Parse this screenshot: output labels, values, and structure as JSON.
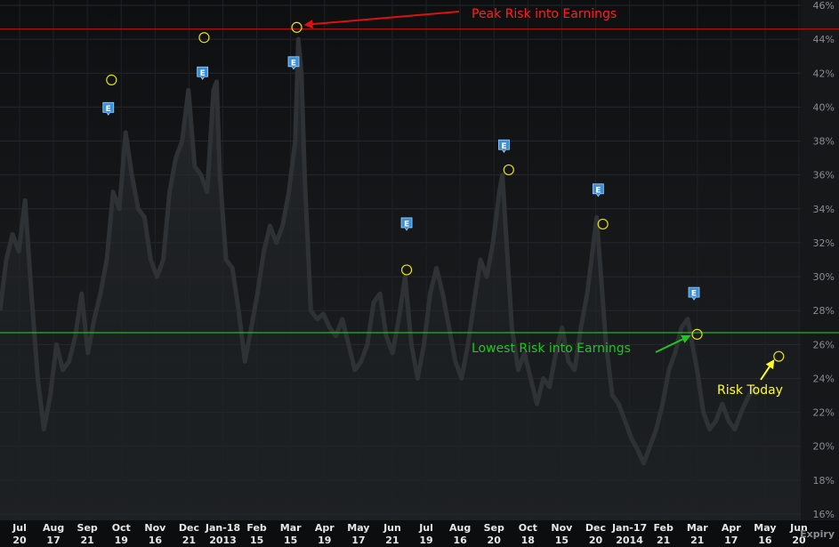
{
  "chart_data": {
    "type": "line",
    "title": "",
    "xlabel": "Expiry",
    "ylabel": "",
    "y_axis_position": "right",
    "ylim": [
      16,
      46
    ],
    "yticks": [
      16,
      18,
      20,
      22,
      24,
      26,
      28,
      30,
      32,
      34,
      36,
      38,
      40,
      42,
      44,
      46
    ],
    "ytick_suffix": "%",
    "grid": true,
    "x_ticks": [
      {
        "month": "Jul",
        "day": "20"
      },
      {
        "month": "Aug",
        "day": "17"
      },
      {
        "month": "Sep",
        "day": "21"
      },
      {
        "month": "Oct",
        "day": "19"
      },
      {
        "month": "Nov",
        "day": "16"
      },
      {
        "month": "Dec",
        "day": "21"
      },
      {
        "month": "Jan-18",
        "day": "2013"
      },
      {
        "month": "Feb",
        "day": "15"
      },
      {
        "month": "Mar",
        "day": "15"
      },
      {
        "month": "Apr",
        "day": "19"
      },
      {
        "month": "May",
        "day": "17"
      },
      {
        "month": "Jun",
        "day": "21"
      },
      {
        "month": "Jul",
        "day": "19"
      },
      {
        "month": "Aug",
        "day": "16"
      },
      {
        "month": "Sep",
        "day": "20"
      },
      {
        "month": "Oct",
        "day": "18"
      },
      {
        "month": "Nov",
        "day": "15"
      },
      {
        "month": "Dec",
        "day": "20"
      },
      {
        "month": "Jan-17",
        "day": "2014"
      },
      {
        "month": "Feb",
        "day": "21"
      },
      {
        "month": "Mar",
        "day": "21"
      },
      {
        "month": "Apr",
        "day": "17"
      },
      {
        "month": "May",
        "day": "16"
      },
      {
        "month": "Jun",
        "day": "20"
      }
    ],
    "series": [
      {
        "values": [
          [
            0,
            28
          ],
          [
            0.4,
            31
          ],
          [
            0.8,
            32.5
          ],
          [
            1.2,
            31.5
          ],
          [
            1.6,
            34.5
          ],
          [
            2.0,
            29
          ],
          [
            2.4,
            24
          ],
          [
            2.8,
            21
          ],
          [
            3.2,
            23
          ],
          [
            3.6,
            26
          ],
          [
            4.0,
            24.5
          ],
          [
            4.4,
            25
          ],
          [
            4.8,
            26.5
          ],
          [
            5.2,
            29
          ],
          [
            5.6,
            25.5
          ],
          [
            6.0,
            27.5
          ],
          [
            6.4,
            29
          ],
          [
            6.8,
            31
          ],
          [
            7.2,
            35
          ],
          [
            7.6,
            34
          ],
          [
            8.0,
            38.5
          ],
          [
            8.4,
            36
          ],
          [
            8.8,
            34
          ],
          [
            9.2,
            33.5
          ],
          [
            9.6,
            31
          ],
          [
            10.0,
            30
          ],
          [
            10.4,
            31
          ],
          [
            10.8,
            35
          ],
          [
            11.2,
            37
          ],
          [
            11.6,
            38
          ],
          [
            12.0,
            41
          ],
          [
            12.4,
            36.5
          ],
          [
            12.8,
            36
          ],
          [
            13.2,
            35
          ],
          [
            13.6,
            41
          ],
          [
            13.8,
            41.5
          ],
          [
            14.0,
            36
          ],
          [
            14.4,
            31
          ],
          [
            14.8,
            30.5
          ],
          [
            15.2,
            28
          ],
          [
            15.6,
            25
          ],
          [
            16.0,
            27
          ],
          [
            16.4,
            29
          ],
          [
            16.8,
            31.5
          ],
          [
            17.2,
            33
          ],
          [
            17.6,
            32
          ],
          [
            18.0,
            33
          ],
          [
            18.4,
            35
          ],
          [
            18.8,
            38
          ],
          [
            19.0,
            44
          ],
          [
            19.2,
            42
          ],
          [
            19.4,
            36
          ],
          [
            19.8,
            28
          ],
          [
            20.2,
            27.5
          ],
          [
            20.6,
            27.8
          ],
          [
            21.0,
            27
          ],
          [
            21.4,
            26.5
          ],
          [
            21.8,
            27.5
          ],
          [
            22.2,
            26
          ],
          [
            22.6,
            24.5
          ],
          [
            23.0,
            25
          ],
          [
            23.4,
            26
          ],
          [
            23.8,
            28.5
          ],
          [
            24.2,
            29
          ],
          [
            24.6,
            26.5
          ],
          [
            25.0,
            25.5
          ],
          [
            25.4,
            27.5
          ],
          [
            25.8,
            30
          ],
          [
            26.2,
            26
          ],
          [
            26.6,
            24
          ],
          [
            27.0,
            26
          ],
          [
            27.4,
            29
          ],
          [
            27.8,
            30.5
          ],
          [
            28.2,
            29
          ],
          [
            28.6,
            27
          ],
          [
            29.0,
            25
          ],
          [
            29.4,
            24
          ],
          [
            29.8,
            26
          ],
          [
            30.2,
            28.5
          ],
          [
            30.6,
            31
          ],
          [
            31.0,
            30
          ],
          [
            31.4,
            32
          ],
          [
            31.8,
            35
          ],
          [
            32.0,
            36
          ],
          [
            32.2,
            33
          ],
          [
            32.6,
            27
          ],
          [
            33.0,
            24.5
          ],
          [
            33.4,
            25.5
          ],
          [
            33.8,
            24
          ],
          [
            34.2,
            22.5
          ],
          [
            34.6,
            24
          ],
          [
            35.0,
            23.5
          ],
          [
            35.4,
            25.5
          ],
          [
            35.8,
            27
          ],
          [
            36.2,
            25
          ],
          [
            36.6,
            24.5
          ],
          [
            37.0,
            27
          ],
          [
            37.4,
            29
          ],
          [
            37.8,
            32
          ],
          [
            38.0,
            33.5
          ],
          [
            38.2,
            31
          ],
          [
            38.6,
            26
          ],
          [
            39.0,
            23
          ],
          [
            39.4,
            22.5
          ],
          [
            39.8,
            21.5
          ],
          [
            40.2,
            20.5
          ],
          [
            40.6,
            19.8
          ],
          [
            41.0,
            19
          ],
          [
            41.4,
            20
          ],
          [
            41.8,
            21
          ],
          [
            42.2,
            22.5
          ],
          [
            42.6,
            24.5
          ],
          [
            43.0,
            25.5
          ],
          [
            43.4,
            27
          ],
          [
            43.8,
            27.5
          ],
          [
            44.0,
            26.5
          ],
          [
            44.4,
            24.5
          ],
          [
            44.8,
            22
          ],
          [
            45.2,
            21
          ],
          [
            45.6,
            21.5
          ],
          [
            46.0,
            22.5
          ],
          [
            46.4,
            21.5
          ],
          [
            46.8,
            21
          ],
          [
            47.2,
            22
          ],
          [
            47.6,
            22.8
          ],
          [
            48.0,
            23.5
          ],
          [
            48.2,
            23
          ]
        ]
      }
    ],
    "earnings_markers": [
      {
        "x": 6.9,
        "y": 39.9,
        "label": "E"
      },
      {
        "x": 12.9,
        "y": 42.0,
        "label": "E"
      },
      {
        "x": 18.7,
        "y": 42.6,
        "label": "E"
      },
      {
        "x": 25.9,
        "y": 33.1,
        "label": "E"
      },
      {
        "x": 32.1,
        "y": 37.7,
        "label": "E"
      },
      {
        "x": 38.1,
        "y": 35.1,
        "label": "E"
      },
      {
        "x": 44.2,
        "y": 29.0,
        "label": "E"
      }
    ],
    "highlight_points": [
      {
        "x": 7.1,
        "y": 41.6
      },
      {
        "x": 13.0,
        "y": 44.1
      },
      {
        "x": 18.9,
        "y": 44.7
      },
      {
        "x": 25.9,
        "y": 30.4
      },
      {
        "x": 32.4,
        "y": 36.3
      },
      {
        "x": 38.4,
        "y": 33.1
      },
      {
        "x": 44.4,
        "y": 26.6
      },
      {
        "x": 49.6,
        "y": 25.3
      }
    ],
    "reference_lines": [
      {
        "y": 44.6,
        "color": "#e01010"
      },
      {
        "y": 26.7,
        "color": "#2ad42a"
      }
    ],
    "annotations": [
      {
        "text": "Peak Risk into Earnings",
        "color": "#ff2020"
      },
      {
        "text": "Lowest Risk into Earnings",
        "color": "#22c422"
      },
      {
        "text": "Risk Today",
        "color": "#ffff22"
      }
    ]
  }
}
